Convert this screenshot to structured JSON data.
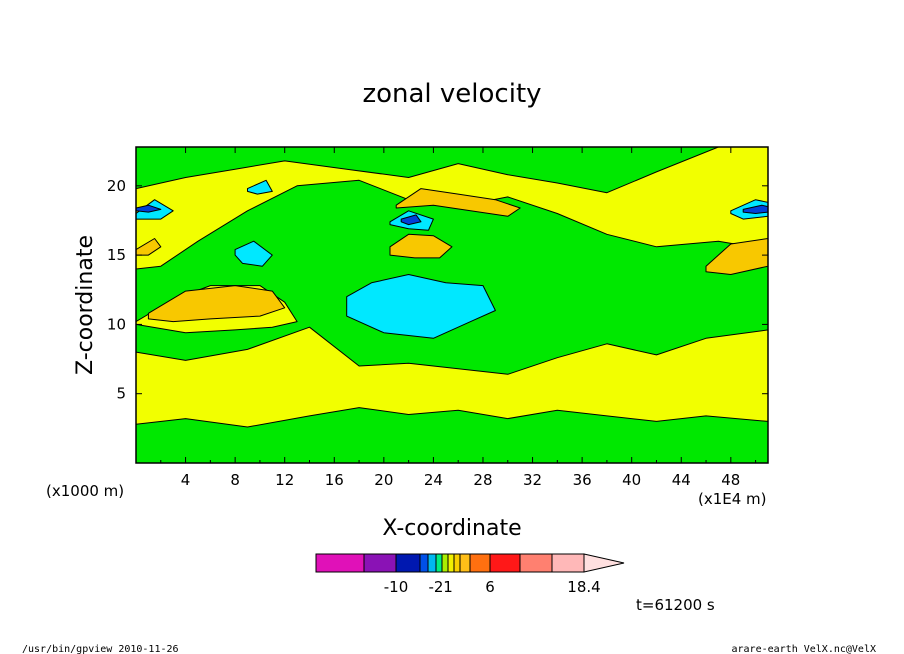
{
  "chart_data": {
    "type": "heatmap",
    "title": "zonal velocity",
    "xlabel": "X-coordinate",
    "ylabel": "Z-coordinate",
    "x_unit": "(x1000 m)",
    "x_scale_note": "(x1E4 m)",
    "xlim": [
      0,
      51
    ],
    "ylim": [
      0,
      22.8
    ],
    "x_ticks": [
      "4",
      "8",
      "12",
      "16",
      "20",
      "24",
      "28",
      "32",
      "36",
      "40",
      "44",
      "48"
    ],
    "y_ticks": [
      "5",
      "10",
      "15",
      "20"
    ],
    "colorbar": {
      "ticks": [
        "-10",
        "-2",
        "1",
        "6",
        "18.4"
      ],
      "colors": [
        "#e011b8",
        "#8a12b5",
        "#0018b0",
        "#0050e8",
        "#00b8f0",
        "#00ee80",
        "#aaee00",
        "#f0f000",
        "#f8d000",
        "#ffbe18",
        "#ff7010",
        "#ff1818",
        "#ff8070",
        "#ffb8b8",
        "#ffe0e0"
      ]
    },
    "background_value_color": "#00e800",
    "regions": [
      {
        "level": "weak-positive",
        "color": "#f2ff00",
        "x": [
          0,
          4,
          9,
          14,
          18,
          22,
          26,
          30,
          34,
          38,
          42,
          46,
          51,
          51,
          46,
          42,
          38,
          34,
          30,
          26,
          22,
          18,
          14,
          9,
          4,
          0
        ],
        "z": [
          2.8,
          3.2,
          2.6,
          3.4,
          4.0,
          3.5,
          3.8,
          3.2,
          3.8,
          3.4,
          3.0,
          3.4,
          3.0,
          9.6,
          9.0,
          7.8,
          8.6,
          7.6,
          6.4,
          6.8,
          7.2,
          7.0,
          9.8,
          8.2,
          7.4,
          8.0
        ]
      },
      {
        "level": "weak-positive",
        "color": "#f2ff00",
        "x": [
          0,
          3,
          6,
          10,
          12,
          13,
          11,
          8,
          4,
          0
        ],
        "z": [
          10.2,
          11.8,
          12.8,
          12.8,
          11.6,
          10.2,
          9.8,
          9.6,
          9.4,
          10.0
        ]
      },
      {
        "level": "weak-positive",
        "color": "#f2ff00",
        "x": [
          0,
          2,
          5,
          9,
          13,
          18,
          22,
          26,
          30,
          34,
          38,
          42,
          47,
          51,
          51,
          47,
          42,
          38,
          34,
          30,
          26,
          22,
          17,
          12,
          8,
          4,
          0
        ],
        "z": [
          14.0,
          14.2,
          16.0,
          18.2,
          20.0,
          20.4,
          19.0,
          18.5,
          19.2,
          18.0,
          16.5,
          15.6,
          16.0,
          15.4,
          22.8,
          22.8,
          21.0,
          19.5,
          20.2,
          20.8,
          21.6,
          20.6,
          21.2,
          21.8,
          21.2,
          20.6,
          19.8
        ]
      },
      {
        "level": "moderate-positive",
        "color": "#f8c800",
        "x": [
          1,
          4,
          8,
          11,
          12,
          10,
          6,
          3,
          1
        ],
        "z": [
          10.8,
          12.4,
          12.8,
          12.4,
          11.2,
          10.6,
          10.4,
          10.2,
          10.4
        ]
      },
      {
        "level": "moderate-positive",
        "color": "#f8c800",
        "x": [
          21,
          23,
          26,
          29,
          31,
          30,
          27,
          24,
          21
        ],
        "z": [
          18.6,
          19.8,
          19.4,
          19.0,
          18.4,
          17.8,
          18.2,
          18.6,
          18.4
        ]
      },
      {
        "level": "moderate-positive",
        "color": "#f8c800",
        "x": [
          20.5,
          22,
          24,
          25.5,
          24.5,
          22.5,
          20.5
        ],
        "z": [
          15.6,
          16.5,
          16.4,
          15.6,
          14.8,
          14.8,
          15.0
        ]
      },
      {
        "level": "moderate-positive",
        "color": "#f8c800",
        "x": [
          46,
          48,
          51,
          51,
          48,
          46
        ],
        "z": [
          14.2,
          15.8,
          16.2,
          14.2,
          13.6,
          13.8
        ]
      },
      {
        "level": "moderate-positive",
        "color": "#f8c800",
        "x": [
          0,
          1.5,
          2,
          1,
          0
        ],
        "z": [
          15.4,
          16.2,
          15.6,
          15.0,
          15.0
        ]
      },
      {
        "level": "weak-negative",
        "color": "#00e8ff",
        "x": [
          17,
          19,
          22,
          25,
          28,
          29,
          27,
          24,
          20,
          17
        ],
        "z": [
          12.0,
          13.0,
          13.6,
          13.0,
          12.8,
          11.0,
          10.2,
          9.0,
          9.4,
          10.6
        ]
      },
      {
        "level": "weak-negative",
        "color": "#00e8ff",
        "x": [
          8,
          9.5,
          11,
          10.2,
          8.6,
          8
        ],
        "z": [
          15.4,
          16.0,
          15.0,
          14.2,
          14.4,
          15.0
        ]
      },
      {
        "level": "weak-negative",
        "color": "#00e8ff",
        "x": [
          20.5,
          22,
          24,
          23.6,
          22,
          20.5
        ],
        "z": [
          17.4,
          18.2,
          17.6,
          16.8,
          16.9,
          17.2
        ]
      },
      {
        "level": "weak-negative",
        "color": "#00e8ff",
        "x": [
          0,
          1.5,
          3,
          2,
          0
        ],
        "z": [
          18.0,
          19.0,
          18.2,
          17.6,
          17.6
        ]
      },
      {
        "level": "weak-negative",
        "color": "#00e8ff",
        "x": [
          48,
          50,
          51,
          51,
          49,
          48
        ],
        "z": [
          18.2,
          19.0,
          18.8,
          17.8,
          17.6,
          18.0
        ]
      },
      {
        "level": "weak-negative",
        "color": "#00e8ff",
        "x": [
          9,
          10.5,
          11,
          9.8,
          9
        ],
        "z": [
          19.8,
          20.4,
          19.6,
          19.4,
          19.6
        ]
      },
      {
        "level": "strong-negative",
        "color": "#0040d8",
        "x": [
          0,
          1,
          2,
          1,
          0
        ],
        "z": [
          18.4,
          18.6,
          18.3,
          18.1,
          18.2
        ]
      },
      {
        "level": "strong-negative",
        "color": "#0040d8",
        "x": [
          49,
          50.5,
          51,
          51,
          50,
          49
        ],
        "z": [
          18.3,
          18.6,
          18.5,
          18.1,
          18.0,
          18.1
        ]
      },
      {
        "level": "strong-negative",
        "color": "#0040d8",
        "x": [
          21.4,
          22.6,
          23,
          22,
          21.4
        ],
        "z": [
          17.6,
          17.9,
          17.4,
          17.2,
          17.4
        ]
      }
    ]
  },
  "time_label": "t=61200 s",
  "footer_left": "/usr/bin/gpview  2010-11-26",
  "footer_right": "arare-earth_VelX.nc@VelX"
}
